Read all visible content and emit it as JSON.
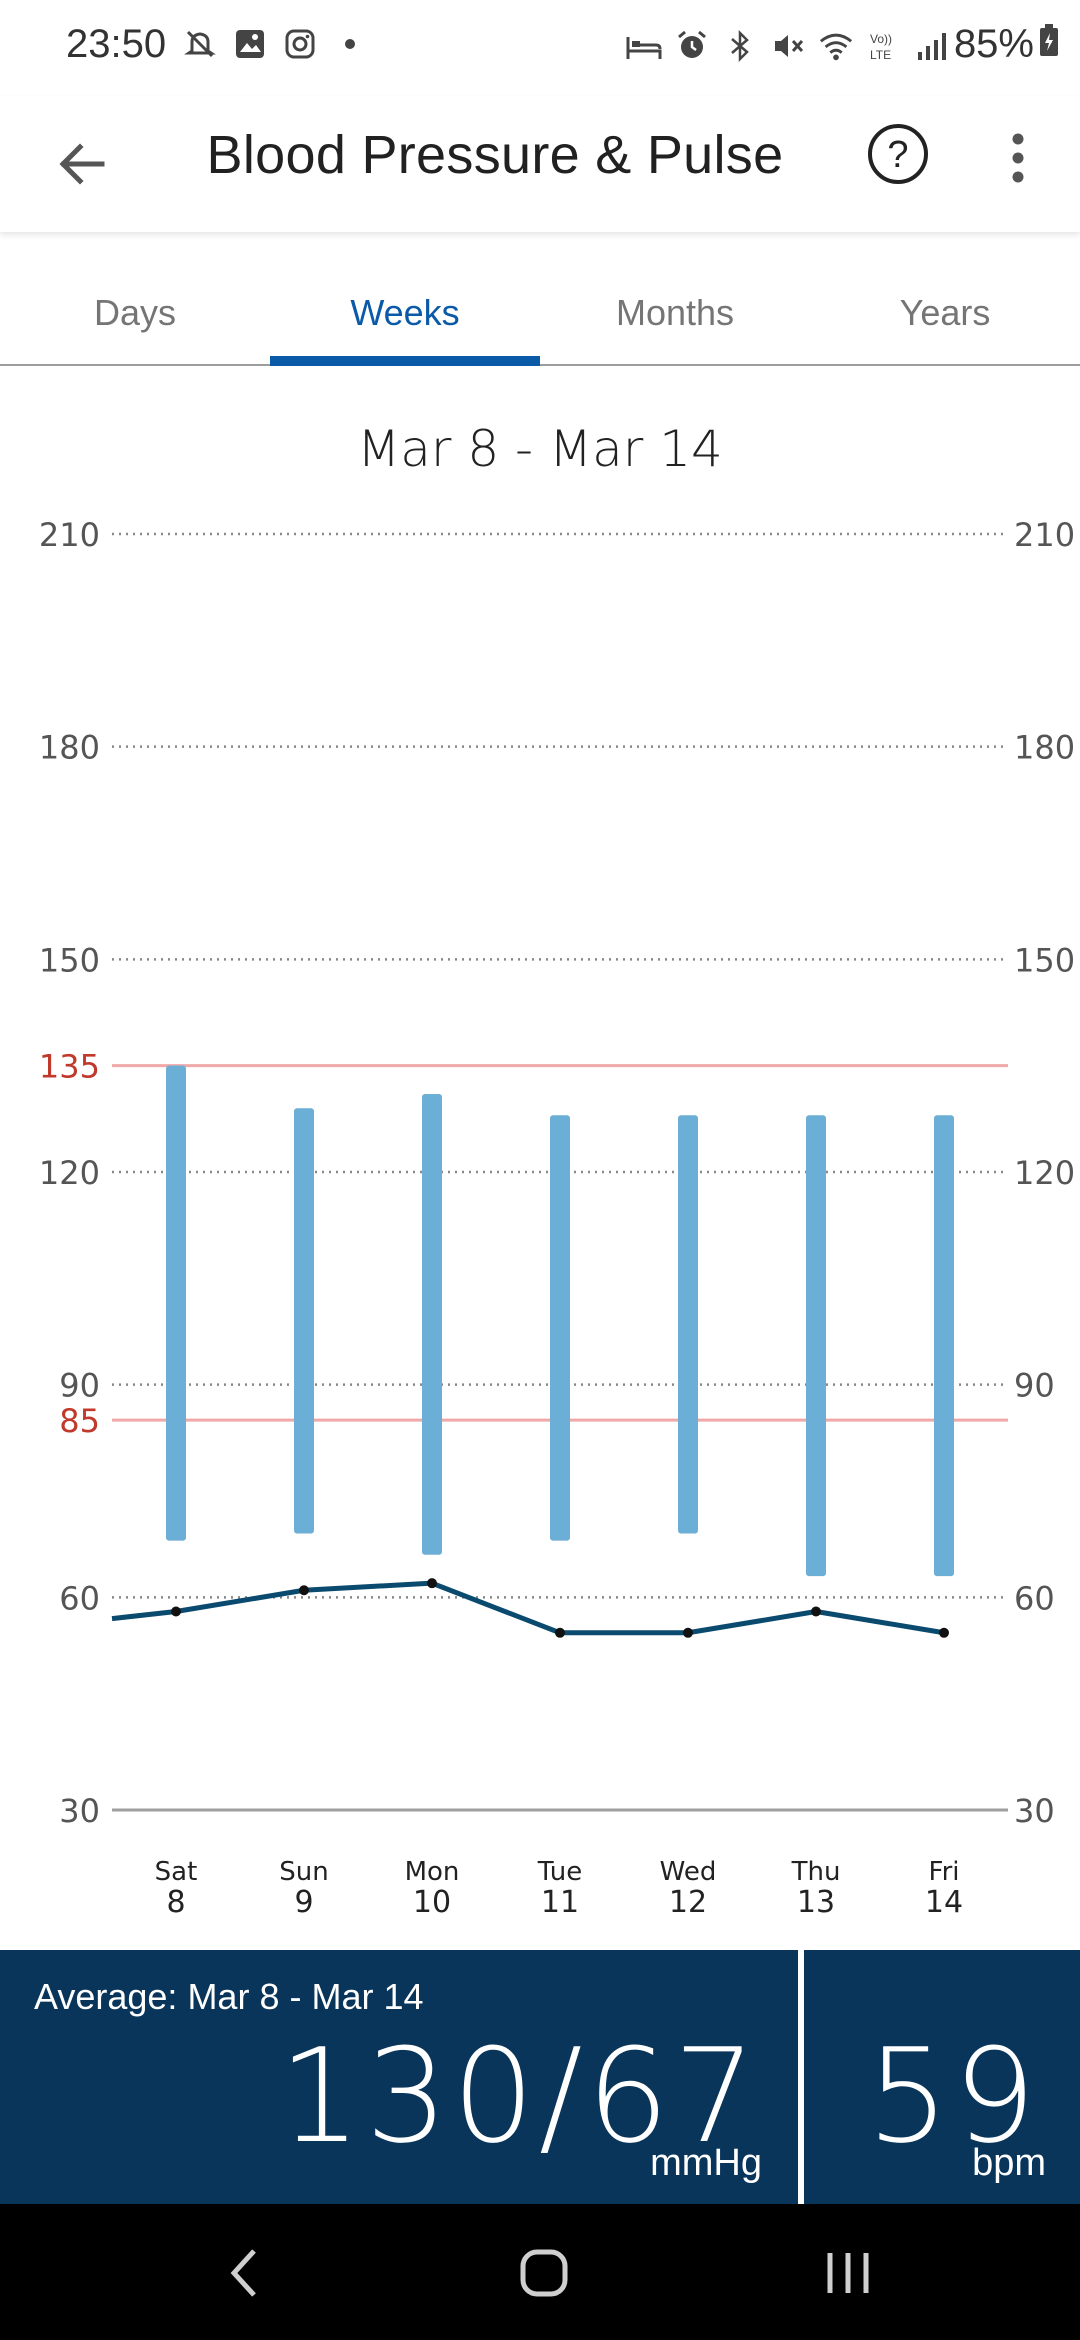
{
  "status_bar": {
    "time": "23:50",
    "battery": "85%",
    "left_icons": [
      "notifications-off-icon",
      "gallery-icon",
      "instagram-icon",
      "dot-icon"
    ],
    "right_icons": [
      "sleep-mode-icon",
      "alarm-icon",
      "bluetooth-icon",
      "mute-icon",
      "wifi-icon",
      "volte-icon",
      "signal-icon"
    ]
  },
  "app_bar": {
    "title": "Blood Pressure & Pulse",
    "help_label": "?"
  },
  "tabs": [
    {
      "label": "Days",
      "active": false
    },
    {
      "label": "Weeks",
      "active": true
    },
    {
      "label": "Months",
      "active": false
    },
    {
      "label": "Years",
      "active": false
    }
  ],
  "colors": {
    "accent": "#0b5aa8",
    "bar": "#6baed6",
    "pulse_line": "#0b4a6f",
    "threshold": "#f0a8a8",
    "threshold_label": "#c0392b",
    "summary_bg": "#09355a"
  },
  "chart_data": {
    "type": "bar",
    "title": "Mar 8 - Mar 14",
    "categories": [
      "Sat",
      "Sun",
      "Mon",
      "Tue",
      "Wed",
      "Thu",
      "Fri"
    ],
    "category_dates": [
      "8",
      "9",
      "10",
      "11",
      "12",
      "13",
      "14"
    ],
    "ylim": [
      30,
      210
    ],
    "yticks": [
      "210",
      "180",
      "150",
      "120",
      "90",
      "60",
      "30"
    ],
    "ytick_values": [
      210,
      180,
      150,
      120,
      90,
      60,
      30
    ],
    "thresholds": [
      {
        "label": "135",
        "value": 135
      },
      {
        "label": "85",
        "value": 85
      }
    ],
    "series": [
      {
        "kind": "range",
        "systolic": [
          135,
          129,
          131,
          128,
          128,
          128,
          128
        ],
        "diastolic": [
          68,
          69,
          66,
          68,
          69,
          63,
          63
        ]
      },
      {
        "kind": "line",
        "values": [
          58,
          61,
          62,
          55,
          55,
          58,
          55
        ],
        "lead_in": 57
      }
    ],
    "grid": true
  },
  "summary": {
    "caption": "Average: Mar 8 - Mar 14",
    "bp_value": "130/67",
    "bp_unit": "mmHg",
    "pulse_value": "59",
    "pulse_unit": "bpm"
  },
  "nav_bar": {
    "buttons": [
      "back-nav-icon",
      "home-nav-icon",
      "recents-nav-icon"
    ]
  }
}
